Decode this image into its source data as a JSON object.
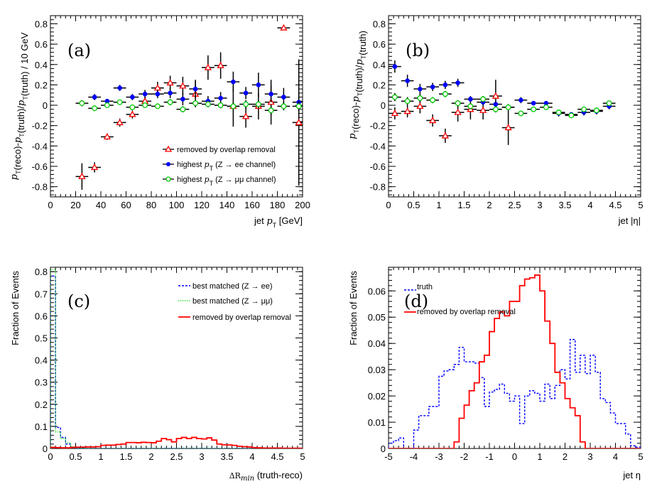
{
  "chart_data": [
    {
      "id": "a",
      "type": "scatter",
      "panel_tag": "(a)",
      "xlabel": "jet p_T [GeV]",
      "xlabel_parts": {
        "pre": "jet ",
        "var": "p",
        "sub": "T",
        "post": " [GeV]"
      },
      "ylabel": "p_T(reco)-p_T(truth)/p_T(truth) / 10 GeV",
      "xlim": [
        0,
        200
      ],
      "ylim": [
        -0.9,
        0.88
      ],
      "xticks": [
        0,
        20,
        40,
        60,
        80,
        100,
        120,
        140,
        160,
        180,
        200
      ],
      "yticks": [
        -0.8,
        -0.6,
        -0.4,
        -0.2,
        0,
        0.2,
        0.4,
        0.6,
        0.8
      ],
      "ytick_labels": [
        "-0.8",
        "-0.6",
        "-0.4",
        "-0.2",
        "0",
        "0.2",
        "0.4",
        "0.6",
        "0.8"
      ],
      "legend_position": "bottom-right",
      "series": [
        {
          "name": "removed by overlap removal",
          "marker": "open-triangle",
          "color": "#ff0000",
          "x": [
            25,
            35,
            45,
            55,
            65,
            75,
            85,
            95,
            105,
            115,
            125,
            135,
            145,
            155,
            165,
            175,
            185,
            197
          ],
          "y": [
            -0.7,
            -0.61,
            -0.31,
            -0.17,
            -0.09,
            0.04,
            0.17,
            0.22,
            0.19,
            0.11,
            0.37,
            0.39,
            -0.01,
            -0.11,
            -0.01,
            0.03,
            0.76,
            -0.17
          ],
          "yerr": [
            0.13,
            0.05,
            0.03,
            0.04,
            0.04,
            0.04,
            0.06,
            0.07,
            0.09,
            0.13,
            0.12,
            0.13,
            0.2,
            0.11,
            0.13,
            0.22,
            0.0,
            0.62
          ]
        },
        {
          "name": "highest p_T (Z → ee channel)",
          "marker": "filled-circle",
          "color": "#0000ff",
          "x": [
            25,
            35,
            45,
            55,
            65,
            75,
            85,
            95,
            105,
            115,
            125,
            135,
            145,
            155,
            165,
            175,
            185,
            197
          ],
          "y": [
            0.02,
            0.08,
            0.04,
            0.17,
            0.08,
            0.11,
            0.11,
            0.12,
            0.06,
            0.16,
            0.04,
            0.07,
            0.23,
            0.12,
            0.2,
            0.11,
            0.08,
            0.03
          ],
          "yerr": [
            0.03,
            0.03,
            0.02,
            0.03,
            0.03,
            0.04,
            0.04,
            0.05,
            0.06,
            0.09,
            0.05,
            0.06,
            0.1,
            0.06,
            0.12,
            0.08,
            0.09,
            0.09
          ]
        },
        {
          "name": "highest p_T (Z → μμ channel)",
          "marker": "open-circle",
          "color": "#00cc00",
          "x": [
            25,
            35,
            45,
            55,
            65,
            75,
            85,
            95,
            105,
            115,
            125,
            135,
            145,
            155,
            165,
            175,
            185,
            197
          ],
          "y": [
            0.02,
            -0.03,
            0.0,
            0.03,
            -0.02,
            0.0,
            -0.01,
            0.03,
            -0.04,
            0.02,
            0.01,
            0.0,
            -0.01,
            0.01,
            0.01,
            -0.05,
            -0.01,
            -0.01
          ],
          "yerr": [
            0.02,
            0.02,
            0.02,
            0.02,
            0.02,
            0.02,
            0.02,
            0.03,
            0.03,
            0.03,
            0.03,
            0.03,
            0.04,
            0.04,
            0.04,
            0.05,
            0.04,
            0.05
          ]
        }
      ],
      "legend": [
        {
          "pre": "removed by overlap removal",
          "var": "",
          "sub": "",
          "post": ""
        },
        {
          "pre": "highest ",
          "var": "p",
          "sub": "T",
          "post": " (Z → ee channel)"
        },
        {
          "pre": "highest ",
          "var": "p",
          "sub": "T",
          "post": " (Z → μμ channel)"
        }
      ]
    },
    {
      "id": "b",
      "type": "scatter",
      "panel_tag": "(b)",
      "xlabel": "jet |η|",
      "ylabel": "p_T(reco)-p_T(truth)/p_T(truth)",
      "xlim": [
        0,
        5
      ],
      "ylim": [
        -0.9,
        0.88
      ],
      "xticks": [
        0,
        0.5,
        1,
        1.5,
        2,
        2.5,
        3,
        3.5,
        4,
        4.5,
        5
      ],
      "xtick_labels": [
        "0",
        "0.5",
        "1",
        "1.5",
        "2",
        "2.5",
        "3",
        "3.5",
        "4",
        "4.5",
        "5"
      ],
      "yticks": [
        -0.8,
        -0.6,
        -0.4,
        -0.2,
        0,
        0.2,
        0.4,
        0.6,
        0.8
      ],
      "ytick_labels": [
        "-0.8",
        "-0.6",
        "-0.4",
        "-0.2",
        "0",
        "0.2",
        "0.4",
        "0.6",
        "0.8"
      ],
      "series": [
        {
          "name": "removed by overlap removal",
          "marker": "open-triangle",
          "color": "#ff0000",
          "x": [
            0.125,
            0.375,
            0.625,
            0.875,
            1.125,
            1.375,
            1.625,
            1.875,
            2.125,
            2.375
          ],
          "y": [
            -0.08,
            -0.06,
            -0.01,
            -0.15,
            -0.3,
            -0.07,
            -0.04,
            -0.05,
            0.09,
            -0.22
          ],
          "yerr": [
            0.06,
            0.06,
            0.07,
            0.06,
            0.07,
            0.09,
            0.1,
            0.09,
            0.16,
            0.17
          ]
        },
        {
          "name": "highest p_T (Z → ee channel)",
          "marker": "filled-circle",
          "color": "#0000ff",
          "x": [
            0.125,
            0.375,
            0.625,
            0.875,
            1.125,
            1.375,
            1.625,
            1.875,
            2.125,
            2.375,
            2.625,
            2.875,
            3.125,
            3.375,
            3.625,
            3.875,
            4.125,
            4.375
          ],
          "y": [
            0.38,
            0.24,
            0.16,
            0.18,
            0.2,
            0.22,
            0.06,
            0.03,
            0.01,
            -0.02,
            0.05,
            0.02,
            0.02,
            -0.08,
            -0.09,
            -0.07,
            -0.06,
            -0.01
          ],
          "yerr": [
            0.06,
            0.06,
            0.05,
            0.04,
            0.04,
            0.04,
            0.03,
            0.03,
            0.03,
            0.03,
            0.03,
            0.02,
            0.02,
            0.03,
            0.02,
            0.03,
            0.03,
            0.03
          ]
        },
        {
          "name": "highest p_T (Z → μμ channel)",
          "marker": "open-circle",
          "color": "#00cc00",
          "x": [
            0.125,
            0.375,
            0.625,
            0.875,
            1.125,
            1.375,
            1.625,
            1.875,
            2.125,
            2.375,
            2.625,
            2.875,
            3.125,
            3.375,
            3.625,
            3.875,
            4.125,
            4.375
          ],
          "y": [
            0.08,
            0.04,
            0.07,
            0.05,
            0.11,
            0.02,
            -0.01,
            0.06,
            -0.04,
            -0.02,
            -0.08,
            -0.04,
            -0.02,
            -0.07,
            -0.1,
            -0.04,
            -0.05,
            0.02
          ],
          "yerr": [
            0.04,
            0.04,
            0.04,
            0.03,
            0.03,
            0.03,
            0.03,
            0.03,
            0.03,
            0.03,
            0.02,
            0.02,
            0.02,
            0.02,
            0.02,
            0.02,
            0.02,
            0.02
          ]
        }
      ]
    },
    {
      "id": "c",
      "type": "histogram",
      "panel_tag": "(c)",
      "xlabel_math": "ΔR",
      "xlabel_sub": "min",
      "xlabel_post": " (truth-reco)",
      "ylabel": "Fraction of Events",
      "xlim": [
        0,
        5
      ],
      "ylim": [
        0,
        0.82
      ],
      "xticks": [
        0,
        0.5,
        1,
        1.5,
        2,
        2.5,
        3,
        3.5,
        4,
        4.5,
        5
      ],
      "xtick_labels": [
        "0",
        "0.5",
        "1",
        "1.5",
        "2",
        "2.5",
        "3",
        "3.5",
        "4",
        "4.5",
        "5"
      ],
      "yticks": [
        0,
        0.1,
        0.2,
        0.3,
        0.4,
        0.5,
        0.6,
        0.7,
        0.8
      ],
      "ytick_labels": [
        "0",
        "0.1",
        "0.2",
        "0.3",
        "0.4",
        "0.5",
        "0.6",
        "0.7",
        "0.8"
      ],
      "bin_width": 0.1,
      "legend_position": "top-right",
      "series": [
        {
          "name": "best matched (Z → ee)",
          "style": "dashed",
          "color": "#0000ff",
          "values": [
            0.78,
            0.095,
            0.05,
            0.02,
            0.005,
            0.002,
            0.001,
            0,
            0,
            0,
            0,
            0,
            0,
            0,
            0,
            0,
            0,
            0,
            0,
            0,
            0,
            0,
            0,
            0,
            0,
            0,
            0,
            0,
            0,
            0,
            0,
            0,
            0,
            0,
            0,
            0,
            0,
            0,
            0,
            0,
            0,
            0,
            0,
            0,
            0,
            0,
            0,
            0,
            0,
            0
          ]
        },
        {
          "name": "best matched (Z → μμ)",
          "style": "dotted",
          "color": "#00dd00",
          "values": [
            0.81,
            0.075,
            0.045,
            0.025,
            0.008,
            0.003,
            0.001,
            0,
            0,
            0,
            0,
            0,
            0,
            0,
            0,
            0,
            0,
            0,
            0,
            0,
            0,
            0,
            0,
            0,
            0,
            0,
            0,
            0,
            0,
            0,
            0,
            0,
            0,
            0,
            0,
            0,
            0,
            0,
            0,
            0,
            0,
            0,
            0,
            0,
            0,
            0,
            0,
            0,
            0,
            0
          ]
        },
        {
          "name": "removed by overlap removal",
          "style": "solid",
          "color": "#ff0000",
          "values": [
            0.005,
            0.004,
            0.003,
            0.003,
            0.005,
            0.006,
            0.006,
            0.007,
            0.007,
            0.008,
            0.014,
            0.015,
            0.015,
            0.018,
            0.02,
            0.027,
            0.027,
            0.026,
            0.028,
            0.027,
            0.026,
            0.033,
            0.045,
            0.04,
            0.03,
            0.045,
            0.05,
            0.045,
            0.05,
            0.045,
            0.043,
            0.048,
            0.038,
            0.02,
            0.017,
            0.016,
            0.014,
            0.01,
            0.008,
            0.007,
            0.004,
            0.003,
            0.002,
            0.002,
            0.002,
            0.002,
            0.001,
            0.001,
            0.001,
            0.001
          ]
        }
      ]
    },
    {
      "id": "d",
      "type": "histogram",
      "panel_tag": "(d)",
      "xlabel": "jet η",
      "ylabel": "Fraction of Events",
      "xlim": [
        -5,
        5
      ],
      "ylim": [
        0,
        0.069
      ],
      "xticks": [
        -5,
        -4,
        -3,
        -2,
        -1,
        0,
        1,
        2,
        3,
        4,
        5
      ],
      "xtick_labels": [
        "-5",
        "-4",
        "-3",
        "-2",
        "-1",
        "0",
        "1",
        "2",
        "3",
        "4",
        "5"
      ],
      "yticks": [
        0,
        0.01,
        0.02,
        0.03,
        0.04,
        0.05,
        0.06
      ],
      "ytick_labels": [
        "0",
        "0.01",
        "0.02",
        "0.03",
        "0.04",
        "0.05",
        "0.06"
      ],
      "bin_width": 0.2,
      "legend_position": "top-left",
      "series": [
        {
          "name": "truth",
          "style": "dashed",
          "color": "#0000ff",
          "values": [
            0.002,
            0.003,
            0.004,
            0.0,
            0.0,
            0.007,
            0.0125,
            0.0125,
            0.016,
            0.016,
            0.0275,
            0.0295,
            0.03,
            0.032,
            0.0385,
            0.033,
            0.033,
            0.0325,
            0.027,
            0.016,
            0.0215,
            0.0225,
            0.0245,
            0.021,
            0.018,
            0.02,
            0.0095,
            0.02,
            0.022,
            0.021,
            0.018,
            0.0245,
            0.019,
            0.024,
            0.03,
            0.0265,
            0.0415,
            0.029,
            0.0355,
            0.0285,
            0.0355,
            0.029,
            0.019,
            0.0175,
            0.0135,
            0.0095,
            0.0095,
            0.0055,
            0.001,
            0.0005
          ]
        },
        {
          "name": "removed by overlap removal",
          "style": "solid",
          "color": "#ff0000",
          "values": [
            0,
            0,
            0,
            0,
            0,
            0,
            0,
            0,
            0,
            0,
            0,
            0,
            0,
            0.0025,
            0.0115,
            0.0165,
            0.022,
            0.025,
            0.033,
            0.0355,
            0.0445,
            0.0495,
            0.052,
            0.0505,
            0.056,
            0.056,
            0.062,
            0.0645,
            0.065,
            0.066,
            0.06,
            0.0485,
            0.04,
            0.029,
            0.025,
            0.019,
            0.0155,
            0.0125,
            0.0025,
            0,
            0,
            0,
            0,
            0,
            0,
            0,
            0,
            0,
            0,
            0
          ]
        }
      ]
    }
  ]
}
